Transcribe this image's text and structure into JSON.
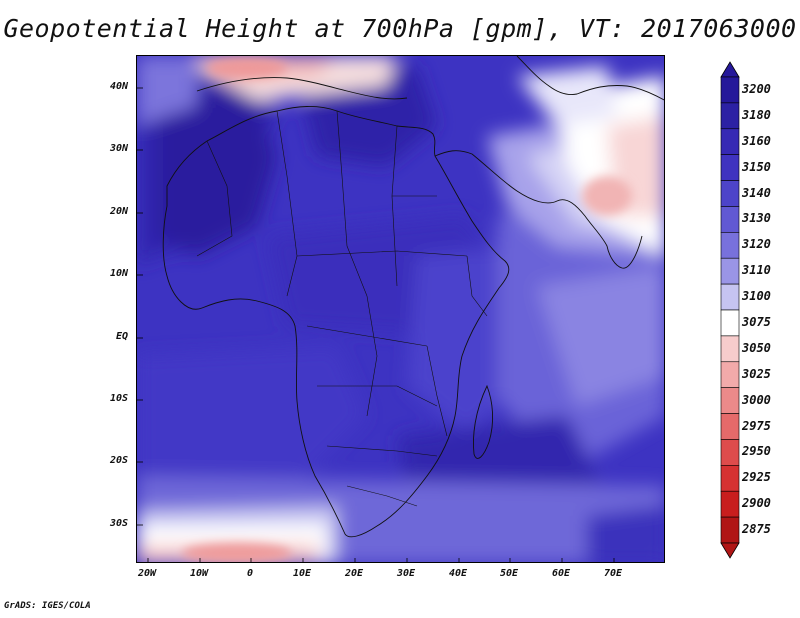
{
  "title": "Geopotential Height at 700hPa [gpm], VT: 2017063000",
  "footer": "GrADS: IGES/COLA",
  "lat_labels": [
    "40N",
    "30N",
    "20N",
    "10N",
    "EQ",
    "10S",
    "20S",
    "30S"
  ],
  "lon_labels": [
    "20W",
    "10W",
    "0",
    "10E",
    "20E",
    "30E",
    "40E",
    "50E",
    "60E",
    "70E"
  ],
  "colorbar": {
    "labels": [
      "3200",
      "3180",
      "3160",
      "3150",
      "3140",
      "3130",
      "3120",
      "3110",
      "3100",
      "3075",
      "3050",
      "3025",
      "3000",
      "2975",
      "2950",
      "2925",
      "2900",
      "2875"
    ],
    "colors": [
      "#25189a",
      "#2c21a4",
      "#3629b4",
      "#3f33c0",
      "#4d44c9",
      "#6159d3",
      "#7871dc",
      "#9a95e6",
      "#c6c4f1",
      "#ffffff",
      "#f7cccc",
      "#f2aaaa",
      "#ec8a8a",
      "#e56a6a",
      "#de4c4c",
      "#d63232",
      "#c81e1e",
      "#b01616"
    ]
  },
  "map": {
    "variable": "Geopotential Height",
    "level": "700hPa",
    "units": "gpm",
    "valid_time": "2017063000",
    "lon_range": [
      -22,
      80
    ],
    "lat_range": [
      -37,
      45
    ]
  }
}
